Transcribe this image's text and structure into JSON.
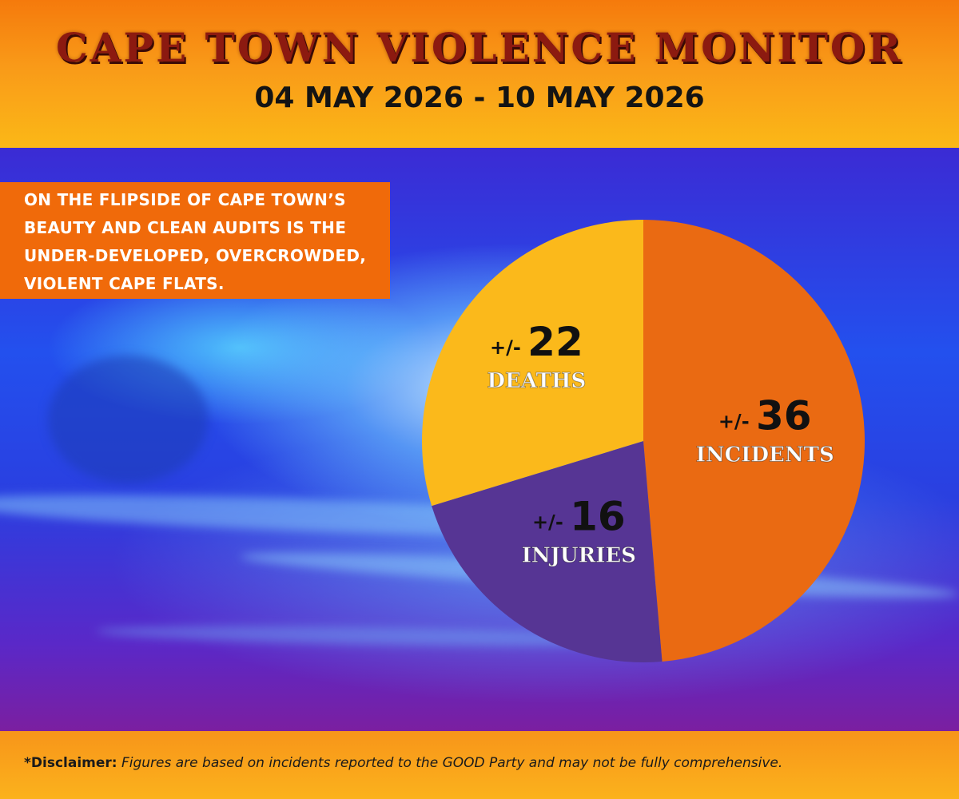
{
  "header": {
    "title": "CAPE TOWN VIOLENCE MONITOR",
    "date_range": "04 MAY 2026 - 10 MAY 2026"
  },
  "callout": {
    "text": "ON THE FLIPSIDE OF CAPE TOWN’S BEAUTY AND CLEAN AUDITS IS THE UNDER-DEVELOPED, OVERCROWDED, VIOLENT CAPE FLATS."
  },
  "chart_data": {
    "type": "pie",
    "slices": [
      {
        "label": "INCIDENTS",
        "prefix": "+/-",
        "value": 36,
        "color": "#ea6a12"
      },
      {
        "label": "INJURIES",
        "prefix": "+/-",
        "value": 16,
        "color": "#563594"
      },
      {
        "label": "DEATHS",
        "prefix": "+/-",
        "value": 22,
        "color": "#fbb91b"
      }
    ]
  },
  "footer": {
    "disclaimer_label": "*Disclaimer:",
    "disclaimer_text": "Figures are based on incidents reported to the GOOD Party and may not be fully comprehensive."
  },
  "colors": {
    "header_orange": "#f57a0c",
    "title_red": "#8c1a10",
    "callout_orange": "#f06a0a"
  }
}
